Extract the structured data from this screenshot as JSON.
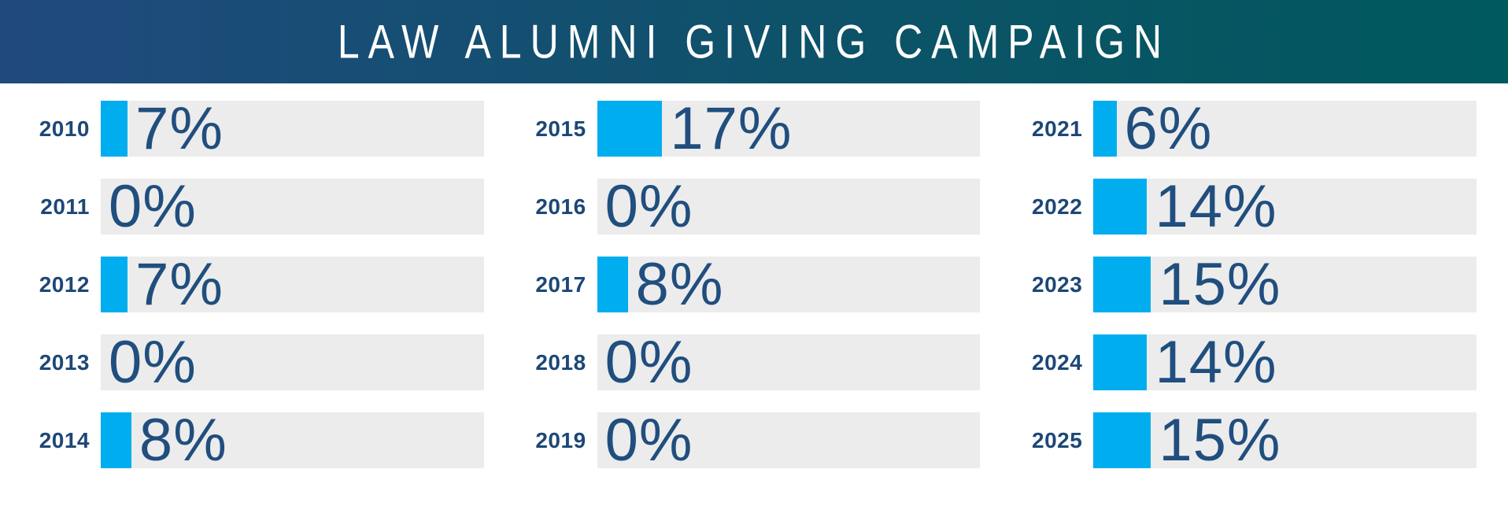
{
  "header": {
    "title": "LAW ALUMNI GIVING CAMPAIGN"
  },
  "colors": {
    "navy_text": "#204e7e",
    "year_text": "#1d4777",
    "bar_fill": "#00aeef",
    "bar_track": "#ececec",
    "header_gradient_left": "#204a7e",
    "header_gradient_mid": "#0d5269",
    "header_gradient_right": "#00595d",
    "title_text": "#ffffff"
  },
  "chart_data": {
    "type": "bar",
    "orientation": "horizontal",
    "title": "LAW ALUMNI GIVING CAMPAIGN",
    "unit": "%",
    "value_axis": {
      "min": 0,
      "max": 100
    },
    "legend": "none",
    "grid": "off",
    "categories": [
      "2010",
      "2011",
      "2012",
      "2013",
      "2014",
      "2015",
      "2016",
      "2017",
      "2018",
      "2019",
      "2021",
      "2022",
      "2023",
      "2024",
      "2025"
    ],
    "values": [
      7,
      0,
      7,
      0,
      8,
      17,
      0,
      8,
      0,
      0,
      6,
      14,
      15,
      14,
      15
    ],
    "columns": [
      {
        "rows": [
          {
            "year": "2010",
            "value": 7,
            "label": "7%"
          },
          {
            "year": "2011",
            "value": 0,
            "label": "0%"
          },
          {
            "year": "2012",
            "value": 7,
            "label": "7%"
          },
          {
            "year": "2013",
            "value": 0,
            "label": "0%"
          },
          {
            "year": "2014",
            "value": 8,
            "label": "8%"
          }
        ]
      },
      {
        "rows": [
          {
            "year": "2015",
            "value": 17,
            "label": "17%"
          },
          {
            "year": "2016",
            "value": 0,
            "label": "0%"
          },
          {
            "year": "2017",
            "value": 8,
            "label": "8%"
          },
          {
            "year": "2018",
            "value": 0,
            "label": "0%"
          },
          {
            "year": "2019",
            "value": 0,
            "label": "0%"
          }
        ]
      },
      {
        "rows": [
          {
            "year": "2021",
            "value": 6,
            "label": "6%"
          },
          {
            "year": "2022",
            "value": 14,
            "label": "14%"
          },
          {
            "year": "2023",
            "value": 15,
            "label": "15%"
          },
          {
            "year": "2024",
            "value": 14,
            "label": "14%"
          },
          {
            "year": "2025",
            "value": 15,
            "label": "15%"
          }
        ]
      }
    ]
  }
}
